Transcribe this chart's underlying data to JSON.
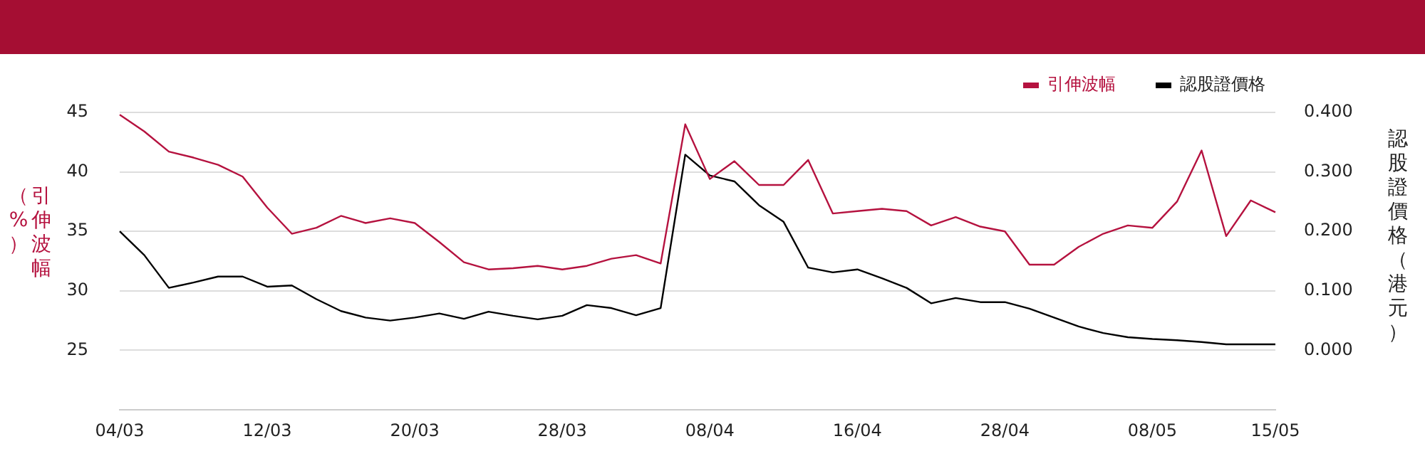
{
  "chart_data": {
    "type": "line",
    "xlabel": null,
    "ylabel": "引伸波幅（%）",
    "y2label": "認股證價格（港元）",
    "categories": [
      "04/03",
      null,
      null,
      null,
      null,
      null,
      "12/03",
      null,
      null,
      null,
      null,
      null,
      "20/03",
      null,
      null,
      null,
      null,
      null,
      "28/03",
      null,
      null,
      null,
      null,
      null,
      "08/04",
      null,
      null,
      null,
      null,
      null,
      "16/04",
      null,
      null,
      null,
      null,
      null,
      "28/04",
      null,
      null,
      null,
      null,
      null,
      "08/05",
      null,
      null,
      null,
      null,
      "15/05"
    ],
    "series": [
      {
        "name": "引伸波幅",
        "color": "#b5123f",
        "values": [
          44.8,
          43.4,
          41.7,
          41.2,
          40.6,
          39.6,
          37.0,
          34.8,
          35.3,
          36.3,
          35.7,
          36.1,
          35.7,
          34.1,
          32.4,
          31.8,
          31.9,
          32.1,
          31.8,
          32.1,
          32.7,
          33.0,
          32.3,
          44.0,
          39.4,
          40.9,
          38.9,
          38.9,
          41.0,
          36.5,
          36.7,
          36.9,
          36.7,
          35.5,
          36.2,
          35.4,
          35.0,
          32.2,
          32.2,
          33.7,
          34.8,
          35.5,
          35.3,
          37.5,
          41.8,
          34.6,
          37.6,
          36.6
        ]
      },
      {
        "name": "認股證價格",
        "color": "#000000",
        "axis": "y2",
        "values": [
          0.2,
          0.16,
          0.105,
          0.114,
          0.124,
          0.124,
          0.107,
          0.109,
          0.086,
          0.066,
          0.055,
          0.05,
          0.055,
          0.062,
          0.053,
          0.065,
          0.058,
          0.052,
          0.058,
          0.076,
          0.071,
          0.059,
          0.071,
          0.329,
          0.294,
          0.284,
          0.244,
          0.216,
          0.139,
          0.131,
          0.136,
          0.121,
          0.105,
          0.079,
          0.088,
          0.081,
          0.081,
          0.07,
          0.055,
          0.04,
          0.029,
          0.022,
          0.019,
          0.017,
          0.014,
          0.01,
          0.01,
          0.01
        ]
      }
    ],
    "ylim": [
      20,
      45
    ],
    "yticks": [
      25,
      30,
      35,
      40,
      45
    ],
    "y2lim": [
      -0.1,
      0.4
    ],
    "y2ticks": [
      {
        "value": 0,
        "label": "0.000"
      },
      {
        "value": 0.1,
        "label": "0.100"
      },
      {
        "value": 0.2,
        "label": "0.200"
      },
      {
        "value": 0.3,
        "label": "0.300"
      },
      {
        "value": 0.4,
        "label": "0.400"
      }
    ],
    "grid": "y",
    "legend": "top right",
    "marker": "none",
    "line_style": "solid"
  }
}
